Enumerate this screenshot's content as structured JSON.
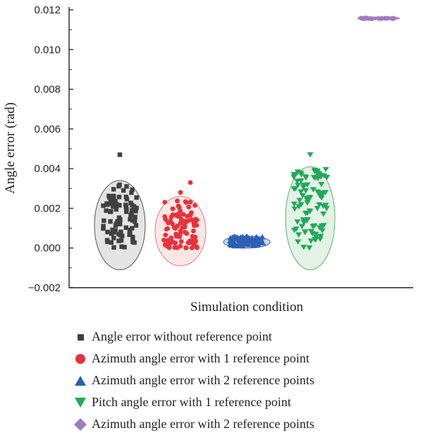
{
  "chart_data": {
    "type": "scatter",
    "xlabel": "Simulation condition",
    "ylabel": "Angle error (rad)",
    "ylim": [
      -0.002,
      0.012
    ],
    "yticks": [
      -0.002,
      0.0,
      0.002,
      0.004,
      0.006,
      0.008,
      0.01,
      0.012
    ],
    "ytick_labels": [
      "−0.002",
      "0.000",
      "0.002",
      "0.004",
      "0.006",
      "0.008",
      "0.010",
      "0.012"
    ],
    "grid": false,
    "legend_position": "bottom",
    "series": [
      {
        "name": "Angle error without reference point",
        "marker": "square",
        "color": "#404040",
        "ellipse_fill": "#e4e4e4",
        "ellipse_stroke": "#555555",
        "ellipse_y": [
          -0.0011,
          0.0034
        ],
        "spread": "uniform",
        "y_range": [
          0.0,
          0.0032
        ],
        "n_points": 90,
        "outliers": [
          0.0047
        ]
      },
      {
        "name": "Azimuth angle error with 1 reference point",
        "marker": "circle",
        "color": "#e8323a",
        "ellipse_fill": "#fbe6e6",
        "ellipse_stroke": "#e87a7a",
        "ellipse_y": [
          -0.0009,
          0.0026
        ],
        "spread": "skew",
        "y_range": [
          0.0,
          0.0024
        ],
        "n_points": 90,
        "outliers": [
          0.0028,
          0.0033
        ]
      },
      {
        "name": "Azimuth angle error with 2 reference points",
        "marker": "triangle-up",
        "color": "#2f5fb3",
        "ellipse_fill": "#c9d8ef",
        "ellipse_stroke": "#2f5fb3",
        "ellipse_y": [
          0.0,
          0.0006
        ],
        "spread": "uniform",
        "y_range": [
          0.0001,
          0.0006
        ],
        "n_points": 80,
        "outliers": []
      },
      {
        "name": "Pitch angle error with 1 reference point",
        "marker": "triangle-down",
        "color": "#22a85a",
        "ellipse_fill": "#e3f3e6",
        "ellipse_stroke": "#58b36e",
        "ellipse_y": [
          -0.0011,
          0.0041
        ],
        "spread": "uniform",
        "y_range": [
          0.0,
          0.004
        ],
        "n_points": 95,
        "outliers": [
          0.0047
        ]
      },
      {
        "name": "Azimuth angle error with 2 reference points",
        "marker": "diamond",
        "color": "#a27ac0",
        "ellipse_fill": "#a27ac0",
        "ellipse_stroke": "#a27ac0",
        "ellipse_y": [
          0.01153,
          0.01162
        ],
        "spread": "uniform",
        "y_range": [
          0.01155,
          0.0116
        ],
        "n_points": 40,
        "outliers": []
      }
    ]
  }
}
